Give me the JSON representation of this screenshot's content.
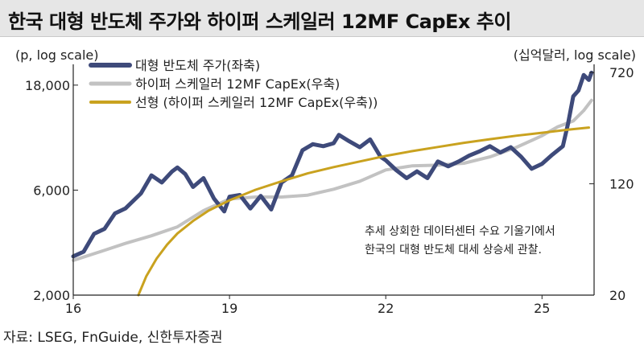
{
  "header": {
    "title": "한국 대형 반도체 주가와 하이퍼 스케일러 12MF CapEx 추이"
  },
  "footer": {
    "source": "자료: LSEG, FnGuide, 신한투자증권"
  },
  "chart_data": {
    "type": "line",
    "title": "한국 대형 반도체 주가와 하이퍼 스케일러 12MF CapEx 추이",
    "ylabel_left": "(p, log scale)",
    "ylabel_right": "(십억달러, log scale)",
    "y_left": {
      "scale": "log",
      "range": [
        2000,
        22000
      ],
      "ticks": [
        2000,
        6000,
        18000
      ],
      "tick_labels": [
        "2,000",
        "6,000",
        "18,000"
      ]
    },
    "y_right": {
      "scale": "log",
      "range": [
        20,
        800
      ],
      "ticks": [
        20,
        120,
        720
      ],
      "tick_labels": [
        "20",
        "120",
        "720"
      ]
    },
    "x": {
      "range": [
        16,
        26
      ],
      "ticks": [
        16,
        19,
        22,
        25
      ],
      "tick_labels": [
        "16",
        "19",
        "22",
        "25"
      ]
    },
    "legend": {
      "position": "top-left"
    },
    "annotation": {
      "lines": [
        "추세 상회한 데이터센터 수요 기울기에서",
        "한국의 대형 반도체 대세 상승세 관찰."
      ]
    },
    "series": [
      {
        "name": "대형 반도체 주가(좌축)",
        "axis": "left",
        "color": "#3e4a7a",
        "x": [
          16.0,
          16.2,
          16.4,
          16.6,
          16.8,
          17.0,
          17.3,
          17.5,
          17.7,
          17.9,
          18.0,
          18.15,
          18.3,
          18.5,
          18.7,
          18.9,
          19.0,
          19.2,
          19.4,
          19.6,
          19.8,
          20.0,
          20.2,
          20.4,
          20.6,
          20.8,
          21.0,
          21.1,
          21.3,
          21.5,
          21.7,
          21.9,
          22.0,
          22.2,
          22.4,
          22.6,
          22.8,
          23.0,
          23.2,
          23.4,
          23.6,
          23.8,
          24.0,
          24.2,
          24.4,
          24.6,
          24.8,
          25.0,
          25.2,
          25.4,
          25.5,
          25.6,
          25.7,
          25.8,
          25.9,
          25.95
        ],
        "values": [
          3000,
          3150,
          3800,
          4000,
          4700,
          4950,
          5800,
          7000,
          6500,
          7300,
          7600,
          7100,
          6200,
          6800,
          5500,
          4800,
          5600,
          5700,
          4950,
          5650,
          4900,
          6500,
          7000,
          9100,
          9700,
          9500,
          9800,
          10700,
          10000,
          9400,
          10200,
          8500,
          8200,
          7400,
          6800,
          7300,
          6800,
          8100,
          7700,
          8100,
          8600,
          9000,
          9500,
          8900,
          9400,
          8500,
          7500,
          7900,
          8700,
          9500,
          12000,
          16000,
          17000,
          20000,
          19000,
          20500
        ]
      },
      {
        "name": "하이퍼 스케일러 12MF CapEx(우축)",
        "axis": "right",
        "color": "#c2c2c2",
        "x": [
          16.0,
          16.5,
          17.0,
          17.5,
          18.0,
          18.5,
          19.0,
          19.5,
          20.0,
          20.5,
          21.0,
          21.5,
          22.0,
          22.5,
          23.0,
          23.5,
          24.0,
          24.5,
          25.0,
          25.3,
          25.6,
          25.8,
          25.95
        ],
        "values": [
          35,
          40,
          46,
          52,
          60,
          78,
          94,
          97,
          97,
          100,
          110,
          125,
          150,
          160,
          162,
          167,
          185,
          215,
          260,
          300,
          330,
          390,
          460
        ]
      },
      {
        "name": "선형 (하이퍼 스케일러 12MF CapEx(우축))",
        "axis": "right",
        "color": "#c9a21f",
        "x": [
          17.25,
          17.4,
          17.6,
          17.8,
          18.0,
          18.3,
          18.6,
          19.0,
          19.5,
          20.0,
          20.5,
          21.0,
          21.5,
          22.0,
          22.5,
          23.0,
          23.5,
          24.0,
          24.5,
          25.0,
          25.5,
          25.9
        ],
        "values": [
          20,
          27,
          36,
          45,
          54,
          66,
          78,
          92,
          109,
          125,
          142,
          157,
          172,
          188,
          203,
          217,
          232,
          246,
          260,
          273,
          287,
          297
        ]
      }
    ]
  }
}
